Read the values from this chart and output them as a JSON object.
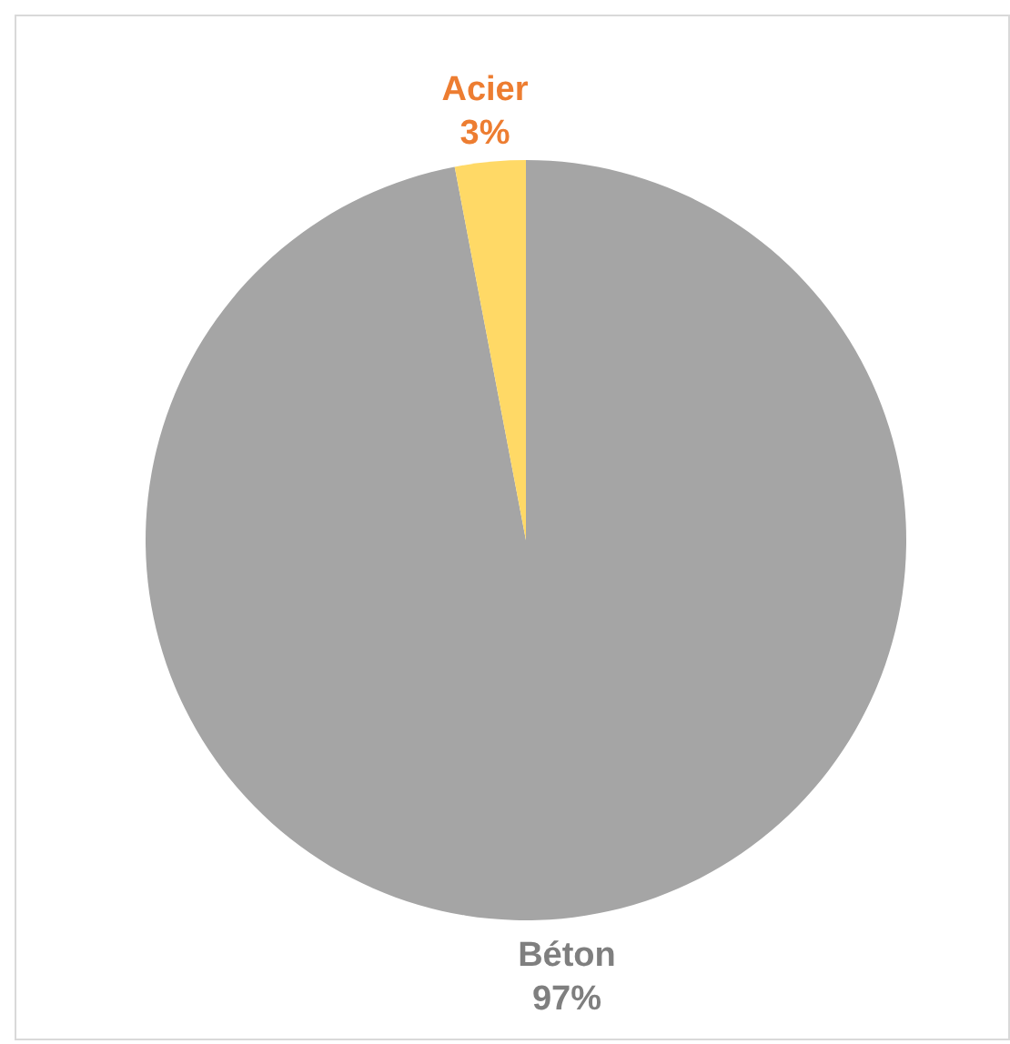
{
  "chart_data": {
    "type": "pie",
    "categories": [
      "Béton",
      "Acier"
    ],
    "values": [
      97,
      3
    ],
    "colors": [
      "#a5a5a5",
      "#ffd966"
    ],
    "value_labels": [
      "97%",
      "3%"
    ]
  }
}
